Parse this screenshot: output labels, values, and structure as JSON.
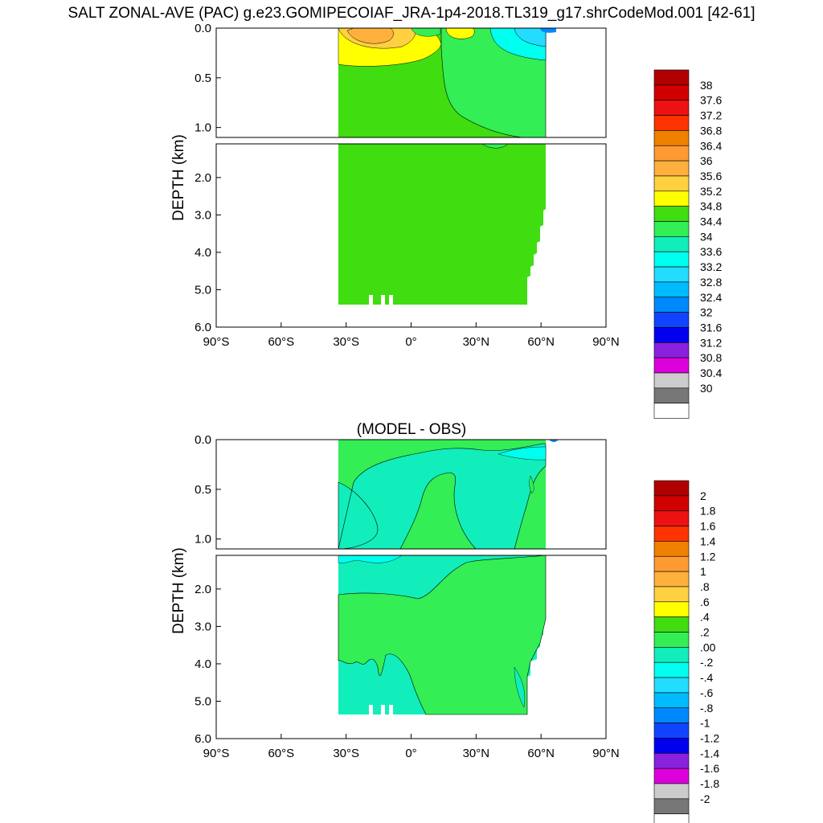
{
  "title": "SALT ZONAL-AVE (PAC) g.e23.GOMIPECOIAF_JRA-1p4-2018.TL319_g17.shrCodeMod.001 [42-61]",
  "chart_data": [
    {
      "type": "heatmap",
      "title": "",
      "ylabel": "DEPTH (km)",
      "x_ticks": [
        "90°S",
        "60°S",
        "30°S",
        "0°",
        "30°N",
        "60°N",
        "90°N"
      ],
      "x_tick_values": [
        -90,
        -60,
        -30,
        0,
        30,
        60,
        90
      ],
      "upper_y_ticks": [
        "0.0",
        "0.5",
        "1.0"
      ],
      "lower_y_ticks": [
        "2.0",
        "3.0",
        "4.0",
        "5.0",
        "6.0"
      ],
      "ylim": [
        0,
        6
      ],
      "colorbar_labels": [
        "38",
        "37.6",
        "37.2",
        "36.8",
        "36.4",
        "36",
        "35.6",
        "35.2",
        "34.8",
        "34.4",
        "34",
        "33.6",
        "33.2",
        "32.8",
        "32.4",
        "32",
        "31.6",
        "31.2",
        "30.8",
        "30.4",
        "30"
      ],
      "colorbar_colors": [
        "#b00000",
        "#d00000",
        "#ee1111",
        "#ff3300",
        "#f08000",
        "#ff9a33",
        "#ffb03c",
        "#ffd040",
        "#ffff00",
        "#40dd10",
        "#33ee55",
        "#11eebb",
        "#00ffee",
        "#22ddff",
        "#00bbff",
        "#0088ff",
        "#1144ff",
        "#0000ee",
        "#8a22dd",
        "#dd00dd",
        "#cccccc",
        "#777777",
        "#ffffff"
      ],
      "dominant_value_range": "34.4-34.8"
    },
    {
      "type": "heatmap",
      "title": "(MODEL - OBS)",
      "ylabel": "DEPTH (km)",
      "x_ticks": [
        "90°S",
        "60°S",
        "30°S",
        "0°",
        "30°N",
        "60°N",
        "90°N"
      ],
      "x_tick_values": [
        -90,
        -60,
        -30,
        0,
        30,
        60,
        90
      ],
      "upper_y_ticks": [
        "0.0",
        "0.5",
        "1.0"
      ],
      "lower_y_ticks": [
        "2.0",
        "3.0",
        "4.0",
        "5.0",
        "6.0"
      ],
      "ylim": [
        0,
        6
      ],
      "colorbar_labels": [
        "2",
        "1.8",
        "1.6",
        "1.4",
        "1.2",
        "1",
        ".8",
        ".6",
        ".4",
        ".2",
        ".00",
        "-.2",
        "-.4",
        "-.6",
        "-.8",
        "-1",
        "-1.2",
        "-1.4",
        "-1.6",
        "-1.8",
        "-2"
      ],
      "colorbar_colors": [
        "#b00000",
        "#d00000",
        "#ee1111",
        "#ff3300",
        "#f08000",
        "#ff9a33",
        "#ffb03c",
        "#ffd040",
        "#ffff00",
        "#40dd10",
        "#33ee55",
        "#11eebb",
        "#00ffee",
        "#22ddff",
        "#00bbff",
        "#0088ff",
        "#1144ff",
        "#0000ee",
        "#8a22dd",
        "#dd00dd",
        "#cccccc",
        "#777777",
        "#ffffff"
      ],
      "dominant_value_range": "-.2-.00 and .00-.2"
    }
  ]
}
